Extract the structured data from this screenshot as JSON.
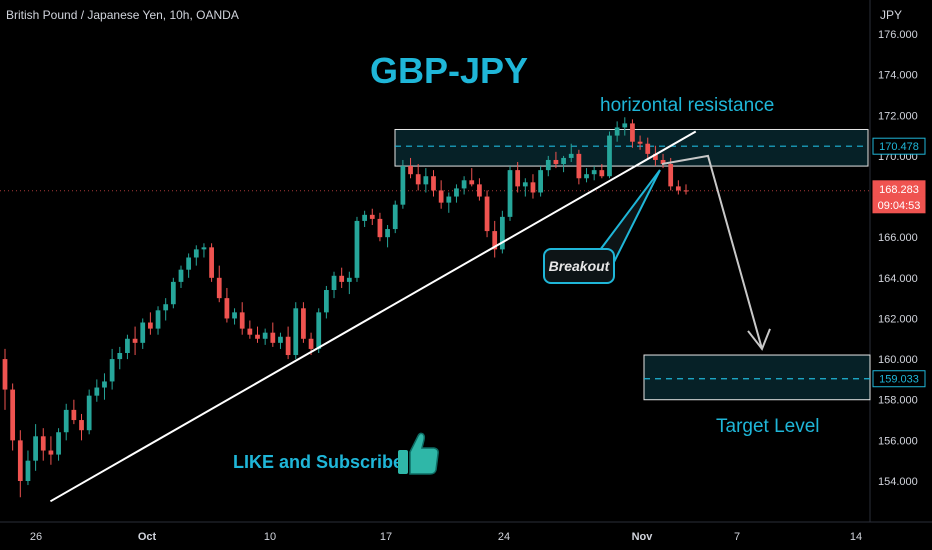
{
  "header": {
    "title": "British Pound / Japanese Yen, 10h, OANDA",
    "currency": "JPY"
  },
  "annotations": {
    "title": "GBP-JPY",
    "resistance": "horizontal resistance",
    "breakout": "Breakout",
    "target": "Target Level",
    "like": "LIKE and Subscribe"
  },
  "colors": {
    "up": "#26a69a",
    "down": "#ef5350",
    "accent": "#1fb6d8",
    "trendline": "#ffffff",
    "arrow": "#c8c8c8"
  },
  "icons": {
    "thumb": "thumbs-up-icon"
  },
  "chart_data": {
    "type": "candlestick",
    "title": "",
    "ylim": [
      153,
      176.5
    ],
    "y_ticks": [
      "176.000",
      "174.000",
      "172.000",
      "170.000",
      "168.000",
      "166.000",
      "164.000",
      "162.000",
      "160.000",
      "158.000",
      "156.000",
      "154.000"
    ],
    "x_ticks": [
      "26",
      "Oct",
      "10",
      "17",
      "24",
      "Nov",
      "7",
      "14"
    ],
    "price_labels": [
      {
        "value": "170.478",
        "type": "resistance"
      },
      {
        "value": "168.283",
        "type": "last"
      },
      {
        "value": "09:04:53",
        "type": "countdown"
      },
      {
        "value": "159.033",
        "type": "target"
      }
    ],
    "zones": [
      {
        "name": "horizontal resistance",
        "low": 169.5,
        "high": 171.3,
        "mid": 170.478
      },
      {
        "name": "target",
        "low": 158.0,
        "high": 160.2,
        "mid": 159.033
      }
    ],
    "trendline": [
      [
        153.0,
        0.03
      ],
      [
        171.2,
        0.75
      ]
    ],
    "projection": [
      [
        0.758,
        170.0
      ],
      [
        0.818,
        160.5
      ]
    ],
    "candles": [
      [
        160.0,
        160.5,
        157.5,
        158.5
      ],
      [
        158.5,
        158.8,
        155.5,
        156.0
      ],
      [
        156.0,
        156.5,
        153.2,
        154.0
      ],
      [
        154.0,
        155.5,
        153.8,
        155.0
      ],
      [
        155.0,
        156.8,
        154.5,
        156.2
      ],
      [
        156.2,
        156.6,
        155.0,
        155.5
      ],
      [
        155.5,
        156.2,
        154.8,
        155.3
      ],
      [
        155.3,
        156.6,
        155.0,
        156.4
      ],
      [
        156.4,
        157.8,
        156.0,
        157.5
      ],
      [
        157.5,
        158.0,
        156.8,
        157.0
      ],
      [
        157.0,
        157.3,
        156.0,
        156.5
      ],
      [
        156.5,
        158.5,
        156.3,
        158.2
      ],
      [
        158.2,
        159.0,
        157.9,
        158.6
      ],
      [
        158.6,
        159.3,
        158.0,
        158.9
      ],
      [
        158.9,
        160.5,
        158.5,
        160.0
      ],
      [
        160.0,
        160.6,
        159.5,
        160.3
      ],
      [
        160.3,
        161.2,
        160.0,
        161.0
      ],
      [
        161.0,
        161.6,
        160.2,
        160.8
      ],
      [
        160.8,
        162.0,
        160.5,
        161.8
      ],
      [
        161.8,
        162.3,
        161.2,
        161.5
      ],
      [
        161.5,
        162.6,
        161.2,
        162.4
      ],
      [
        162.4,
        163.0,
        161.9,
        162.7
      ],
      [
        162.7,
        164.0,
        162.5,
        163.8
      ],
      [
        163.8,
        164.6,
        163.5,
        164.4
      ],
      [
        164.4,
        165.2,
        164.0,
        165.0
      ],
      [
        165.0,
        165.6,
        164.6,
        165.4
      ],
      [
        165.4,
        165.7,
        165.0,
        165.5
      ],
      [
        165.5,
        165.7,
        163.8,
        164.0
      ],
      [
        164.0,
        164.6,
        162.8,
        163.0
      ],
      [
        163.0,
        163.5,
        161.8,
        162.0
      ],
      [
        162.0,
        162.5,
        161.7,
        162.3
      ],
      [
        162.3,
        162.8,
        161.2,
        161.5
      ],
      [
        161.5,
        161.9,
        161.0,
        161.2
      ],
      [
        161.2,
        161.6,
        160.8,
        161.0
      ],
      [
        161.0,
        161.5,
        160.7,
        161.3
      ],
      [
        161.3,
        161.8,
        160.6,
        160.8
      ],
      [
        160.8,
        161.3,
        160.5,
        161.1
      ],
      [
        161.1,
        161.6,
        160.0,
        160.2
      ],
      [
        160.2,
        162.8,
        160.0,
        162.5
      ],
      [
        162.5,
        162.8,
        160.8,
        161.0
      ],
      [
        161.0,
        161.3,
        160.2,
        160.5
      ],
      [
        160.5,
        162.5,
        160.3,
        162.3
      ],
      [
        162.3,
        163.6,
        162.0,
        163.4
      ],
      [
        163.4,
        164.3,
        163.0,
        164.1
      ],
      [
        164.1,
        164.5,
        163.5,
        163.8
      ],
      [
        163.8,
        164.3,
        163.2,
        164.0
      ],
      [
        164.0,
        167.0,
        163.8,
        166.8
      ],
      [
        166.8,
        167.3,
        166.5,
        167.1
      ],
      [
        167.1,
        167.4,
        166.6,
        166.9
      ],
      [
        166.9,
        167.2,
        165.8,
        166.0
      ],
      [
        166.0,
        166.6,
        165.5,
        166.4
      ],
      [
        166.4,
        167.8,
        166.2,
        167.6
      ],
      [
        167.6,
        169.8,
        167.4,
        169.5
      ],
      [
        169.5,
        169.9,
        168.9,
        169.1
      ],
      [
        169.1,
        169.6,
        168.3,
        168.6
      ],
      [
        168.6,
        169.4,
        168.2,
        169.0
      ],
      [
        169.0,
        169.3,
        168.0,
        168.3
      ],
      [
        168.3,
        168.8,
        167.4,
        167.7
      ],
      [
        167.7,
        168.2,
        167.2,
        168.0
      ],
      [
        168.0,
        168.6,
        167.7,
        168.4
      ],
      [
        168.4,
        169.0,
        168.1,
        168.8
      ],
      [
        168.8,
        169.4,
        168.5,
        168.6
      ],
      [
        168.6,
        168.9,
        167.8,
        168.0
      ],
      [
        168.0,
        168.3,
        166.0,
        166.3
      ],
      [
        166.3,
        166.8,
        165.0,
        165.4
      ],
      [
        165.4,
        167.3,
        165.2,
        167.0
      ],
      [
        167.0,
        169.5,
        166.8,
        169.3
      ],
      [
        169.3,
        169.7,
        168.2,
        168.5
      ],
      [
        168.5,
        168.9,
        168.0,
        168.7
      ],
      [
        168.7,
        169.1,
        167.9,
        168.2
      ],
      [
        168.2,
        169.5,
        168.0,
        169.3
      ],
      [
        169.3,
        170.0,
        169.0,
        169.8
      ],
      [
        169.8,
        170.2,
        169.4,
        169.6
      ],
      [
        169.6,
        170.0,
        169.2,
        169.9
      ],
      [
        169.9,
        170.6,
        169.7,
        170.1
      ],
      [
        170.1,
        170.3,
        168.6,
        168.9
      ],
      [
        168.9,
        169.4,
        168.7,
        169.1
      ],
      [
        169.1,
        169.5,
        168.8,
        169.3
      ],
      [
        169.3,
        169.6,
        168.9,
        169.0
      ],
      [
        169.0,
        171.2,
        168.9,
        171.0
      ],
      [
        171.0,
        171.7,
        170.7,
        171.4
      ],
      [
        171.4,
        171.9,
        171.0,
        171.6
      ],
      [
        171.6,
        171.8,
        170.4,
        170.7
      ],
      [
        170.7,
        171.0,
        170.3,
        170.6
      ],
      [
        170.6,
        170.9,
        169.8,
        170.1
      ],
      [
        170.1,
        170.5,
        169.5,
        169.8
      ],
      [
        169.8,
        170.1,
        169.4,
        169.6
      ],
      [
        169.6,
        169.9,
        168.3,
        168.5
      ],
      [
        168.5,
        168.8,
        168.1,
        168.3
      ],
      [
        168.3,
        168.6,
        168.1,
        168.283
      ]
    ]
  }
}
